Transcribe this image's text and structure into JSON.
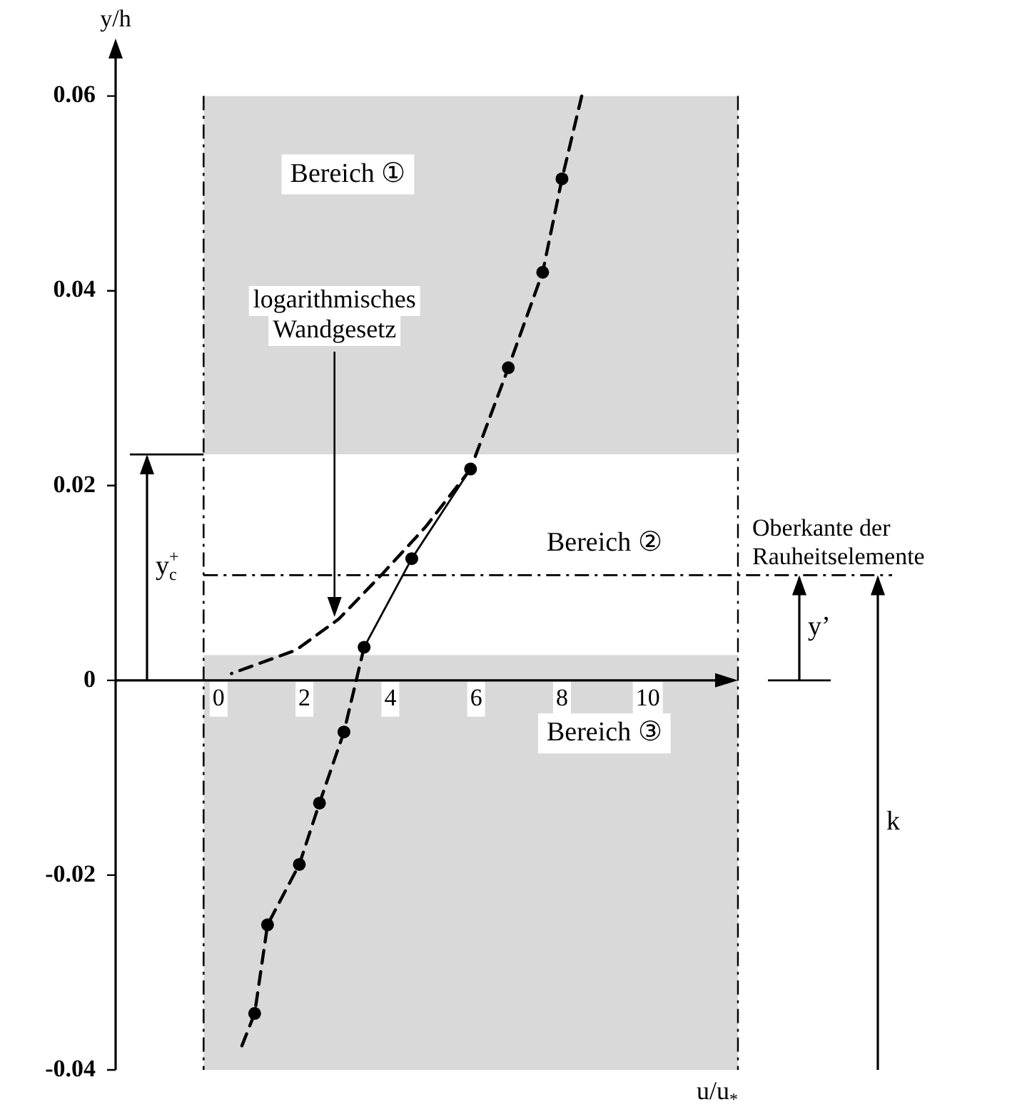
{
  "chart_data": {
    "type": "scatter",
    "xlabel": "u/u$_{*}$",
    "ylabel": "y/h",
    "xlim": [
      -2.4,
      12.1
    ],
    "ylim": [
      -0.04,
      0.064
    ],
    "xticks": [
      0,
      2,
      4,
      6,
      8,
      10
    ],
    "yticks": [
      -0.04,
      -0.02,
      0,
      0.02,
      0.04,
      0.06
    ],
    "grid": false,
    "legend": false,
    "series": [
      {
        "color": "#000000",
        "marker": "circle",
        "x": [
          8.0,
          7.55,
          6.75,
          5.87,
          4.5,
          3.39,
          2.92,
          2.35,
          1.88,
          1.14,
          0.84
        ],
        "values": [
          0.0515,
          0.0419,
          0.0321,
          0.0217,
          0.0125,
          0.0034,
          -0.0053,
          -0.0126,
          -0.0189,
          -0.0251,
          -0.0342
        ]
      },
      {
        "type": "line",
        "color": "#000000",
        "marker": "none",
        "line_style": "dashed",
        "x": [
          8.46,
          8.0,
          7.55,
          6.75,
          5.87
        ],
        "values": [
          0.06,
          0.0515,
          0.0419,
          0.0321,
          0.0217
        ]
      },
      {
        "type": "line",
        "color": "#000000",
        "marker": "none",
        "line_style": "solid",
        "x": [
          5.87,
          4.5,
          3.39
        ],
        "values": [
          0.0217,
          0.0125,
          0.0034
        ]
      },
      {
        "type": "line",
        "color": "#000000",
        "marker": "none",
        "line_style": "dashed",
        "x": [
          3.39,
          2.92,
          2.35,
          1.88,
          1.14,
          0.84,
          0.5
        ],
        "values": [
          0.0034,
          -0.0053,
          -0.0126,
          -0.0189,
          -0.0251,
          -0.0342,
          -0.038
        ]
      },
      {
        "type": "line",
        "color": "#000000",
        "marker": "none",
        "line_style": "dashed",
        "x": [
          5.87,
          4.83,
          3.83,
          2.8,
          1.8,
          0.3
        ],
        "values": [
          0.0217,
          0.0158,
          0.011,
          0.0063,
          0.0031,
          0.0007
        ]
      }
    ],
    "bands": [
      {
        "axis": "y",
        "from": 0.0232,
        "to": 0.06,
        "label": "Bereich ①",
        "color": "#d9d9d9"
      },
      {
        "axis": "y",
        "from": -0.04,
        "to": 0.0026,
        "label": "Bereich ③",
        "color": "#d9d9d9"
      }
    ],
    "ref_lines": [
      {
        "axis": "x",
        "value": -0.35,
        "line_style": "dashed"
      },
      {
        "axis": "y",
        "value": 0.0108,
        "label": "Oberkante der Rauheitselemente",
        "line_style": "dashed"
      }
    ],
    "annotations": [
      {
        "text": "logarithmisches Wandgesetz",
        "x": 2.7,
        "y": 0.0065
      },
      "y$_{c}$$^{+}$",
      "y’",
      "k",
      "Bereich ②"
    ]
  }
}
